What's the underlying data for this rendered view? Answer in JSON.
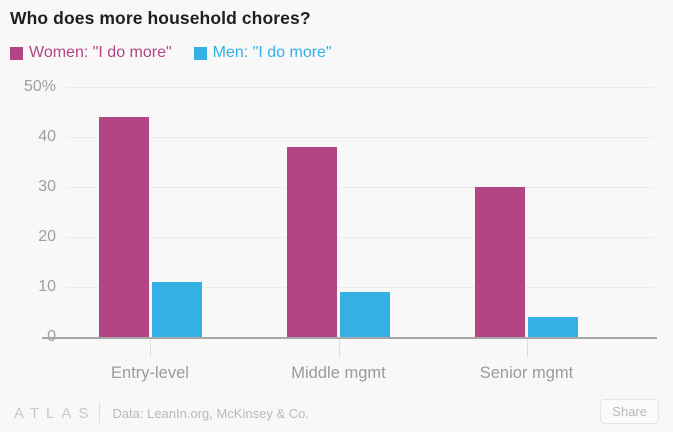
{
  "chart_data": {
    "type": "bar",
    "bar_type": "grouped",
    "title": "Who does more household chores?",
    "categories": [
      "Entry-level",
      "Middle mgmt",
      "Senior mgmt"
    ],
    "series": [
      {
        "name": "Women: \"I do more\"",
        "color": "#b34584",
        "values": [
          44,
          38,
          30
        ]
      },
      {
        "name": "Men: \"I do more\"",
        "color": "#35b0e5",
        "values": [
          11,
          9,
          4
        ]
      }
    ],
    "xlabel": "",
    "ylabel": "",
    "ylim": [
      0,
      50
    ],
    "yticks": [
      {
        "value": 50,
        "label": "50%"
      },
      {
        "value": 40,
        "label": "40"
      },
      {
        "value": 30,
        "label": "30"
      },
      {
        "value": 20,
        "label": "20"
      },
      {
        "value": 10,
        "label": "10"
      },
      {
        "value": 0,
        "label": "0"
      }
    ],
    "grid": "horizontal",
    "legend_position": "top-left"
  },
  "footer": {
    "logo": "ATLAS",
    "source": "Data: LeanIn.org, McKinsey & Co.",
    "share_label": "Share"
  }
}
